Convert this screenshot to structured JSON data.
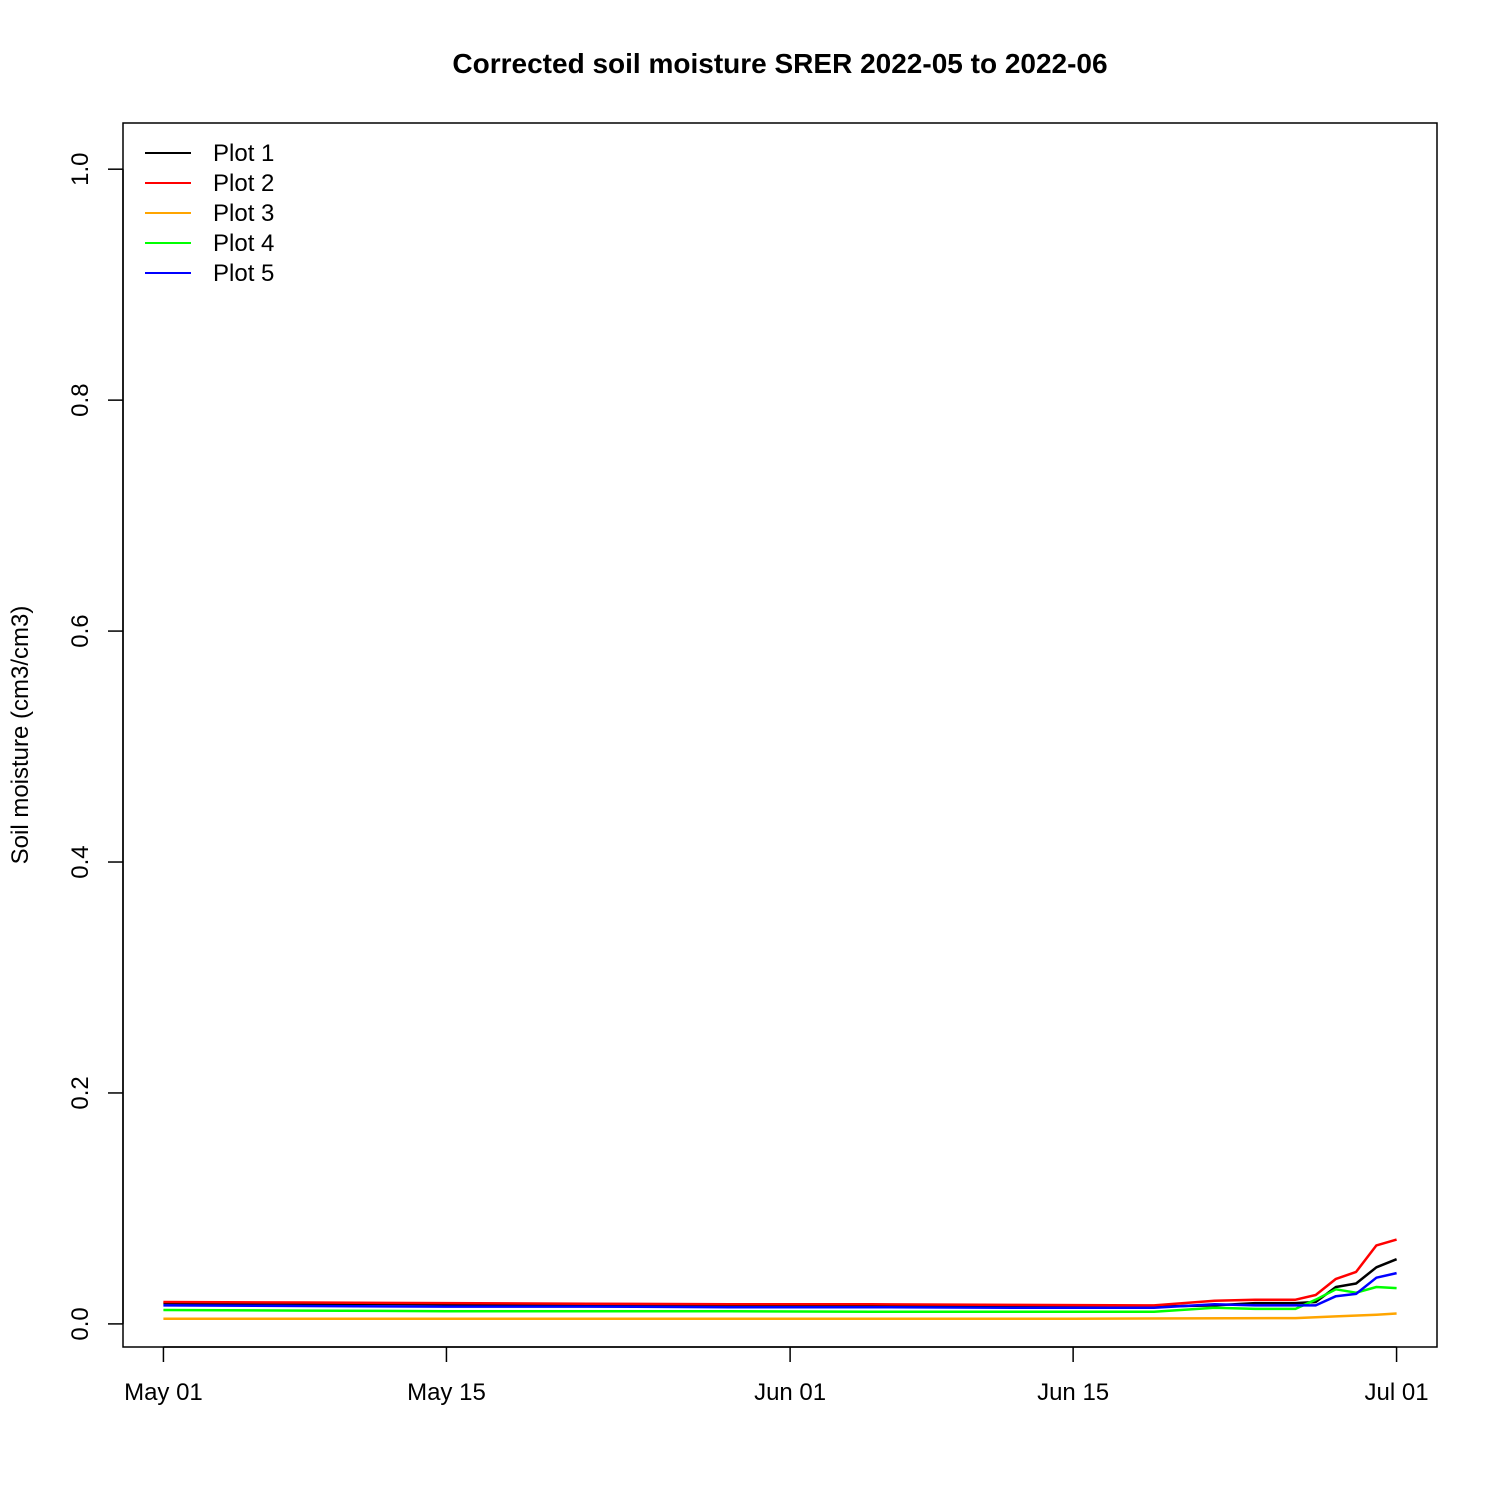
{
  "chart_data": {
    "type": "line",
    "title": "Corrected soil moisture SRER 2022-05 to 2022-06",
    "xlabel": "",
    "ylabel": "Soil moisture (cm3/cm3)",
    "xlim": [
      "2022-04-29",
      "2022-07-03"
    ],
    "ylim": [
      -0.02,
      1.04
    ],
    "x_ticks": [
      {
        "date": "2022-05-01",
        "label": "May 01"
      },
      {
        "date": "2022-05-15",
        "label": "May 15"
      },
      {
        "date": "2022-06-01",
        "label": "Jun 01"
      },
      {
        "date": "2022-06-15",
        "label": "Jun 15"
      },
      {
        "date": "2022-07-01",
        "label": "Jul 01"
      }
    ],
    "y_ticks": [
      0.0,
      0.2,
      0.4,
      0.6,
      0.8,
      1.0
    ],
    "y_tick_labels": [
      "0.0",
      "0.2",
      "0.4",
      "0.6",
      "0.8",
      "1.0"
    ],
    "grid": false,
    "legend_position": "top-left",
    "series": [
      {
        "name": "Plot 1",
        "color": "#000000",
        "points": [
          [
            "2022-05-01",
            0.018
          ],
          [
            "2022-05-08",
            0.0175
          ],
          [
            "2022-05-15",
            0.017
          ],
          [
            "2022-05-22",
            0.0165
          ],
          [
            "2022-05-29",
            0.016
          ],
          [
            "2022-06-05",
            0.016
          ],
          [
            "2022-06-12",
            0.0155
          ],
          [
            "2022-06-19",
            0.015
          ],
          [
            "2022-06-22",
            0.016
          ],
          [
            "2022-06-24",
            0.018
          ],
          [
            "2022-06-26",
            0.018
          ],
          [
            "2022-06-27",
            0.019
          ],
          [
            "2022-06-28",
            0.032
          ],
          [
            "2022-06-29",
            0.035
          ],
          [
            "2022-06-30",
            0.049
          ],
          [
            "2022-07-01",
            0.056
          ]
        ]
      },
      {
        "name": "Plot 2",
        "color": "#ff0000",
        "points": [
          [
            "2022-05-01",
            0.019
          ],
          [
            "2022-05-08",
            0.0185
          ],
          [
            "2022-05-15",
            0.018
          ],
          [
            "2022-05-22",
            0.0175
          ],
          [
            "2022-05-29",
            0.017
          ],
          [
            "2022-06-05",
            0.017
          ],
          [
            "2022-06-12",
            0.0165
          ],
          [
            "2022-06-19",
            0.016
          ],
          [
            "2022-06-22",
            0.02
          ],
          [
            "2022-06-24",
            0.021
          ],
          [
            "2022-06-26",
            0.021
          ],
          [
            "2022-06-27",
            0.025
          ],
          [
            "2022-06-28",
            0.039
          ],
          [
            "2022-06-29",
            0.045
          ],
          [
            "2022-06-30",
            0.068
          ],
          [
            "2022-07-01",
            0.073
          ]
        ]
      },
      {
        "name": "Plot 3",
        "color": "#ffa500",
        "points": [
          [
            "2022-05-01",
            0.0045
          ],
          [
            "2022-05-15",
            0.0045
          ],
          [
            "2022-06-01",
            0.0045
          ],
          [
            "2022-06-15",
            0.0045
          ],
          [
            "2022-06-26",
            0.005
          ],
          [
            "2022-06-28",
            0.0065
          ],
          [
            "2022-06-30",
            0.008
          ],
          [
            "2022-07-01",
            0.009
          ]
        ]
      },
      {
        "name": "Plot 4",
        "color": "#00ff00",
        "points": [
          [
            "2022-05-01",
            0.012
          ],
          [
            "2022-05-08",
            0.0115
          ],
          [
            "2022-05-15",
            0.011
          ],
          [
            "2022-05-22",
            0.011
          ],
          [
            "2022-05-29",
            0.011
          ],
          [
            "2022-06-05",
            0.0105
          ],
          [
            "2022-06-12",
            0.0105
          ],
          [
            "2022-06-19",
            0.0105
          ],
          [
            "2022-06-22",
            0.014
          ],
          [
            "2022-06-24",
            0.013
          ],
          [
            "2022-06-26",
            0.013
          ],
          [
            "2022-06-27",
            0.021
          ],
          [
            "2022-06-28",
            0.03
          ],
          [
            "2022-06-29",
            0.027
          ],
          [
            "2022-06-30",
            0.032
          ],
          [
            "2022-07-01",
            0.031
          ]
        ]
      },
      {
        "name": "Plot 5",
        "color": "#0000ff",
        "points": [
          [
            "2022-05-01",
            0.016
          ],
          [
            "2022-05-08",
            0.0155
          ],
          [
            "2022-05-15",
            0.015
          ],
          [
            "2022-05-22",
            0.015
          ],
          [
            "2022-05-29",
            0.0145
          ],
          [
            "2022-06-05",
            0.0145
          ],
          [
            "2022-06-12",
            0.014
          ],
          [
            "2022-06-19",
            0.014
          ],
          [
            "2022-06-22",
            0.017
          ],
          [
            "2022-06-24",
            0.016
          ],
          [
            "2022-06-26",
            0.016
          ],
          [
            "2022-06-27",
            0.016
          ],
          [
            "2022-06-28",
            0.024
          ],
          [
            "2022-06-29",
            0.026
          ],
          [
            "2022-06-30",
            0.04
          ],
          [
            "2022-07-01",
            0.044
          ]
        ]
      }
    ]
  }
}
